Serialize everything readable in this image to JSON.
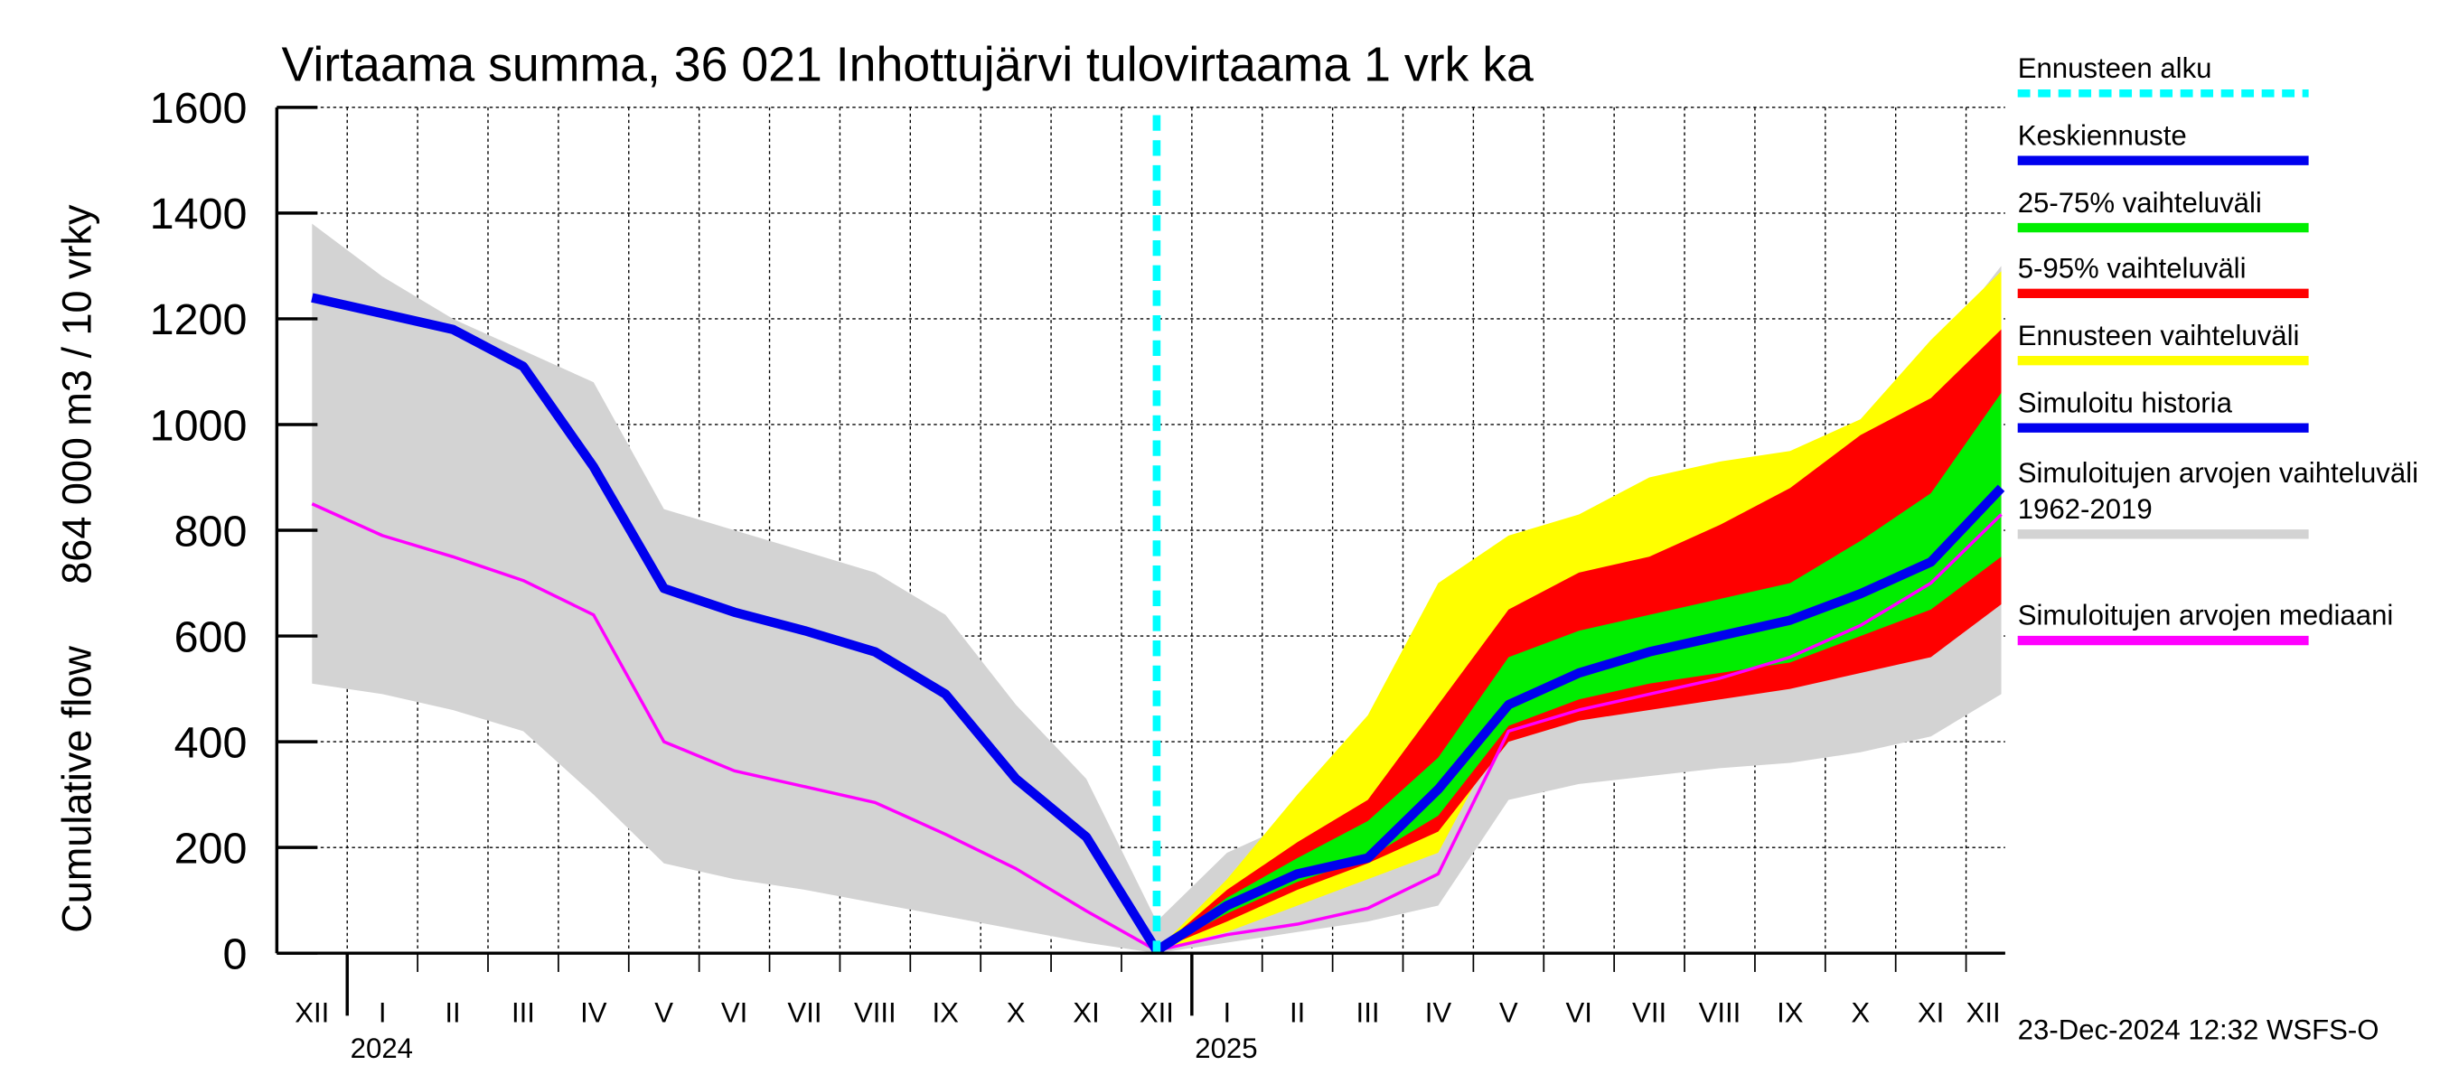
{
  "chart_data": {
    "type": "band",
    "title": "Virtaama summa, 36 021 Inhottujärvi tulovirtaama 1 vrk ka",
    "ylabel": "Cumulative flow",
    "ylabel_units": "864 000 m3 / 10 vrky",
    "footer": "23-Dec-2024 12:32 WSFS-O",
    "x": [
      "2023-12",
      "2024-01",
      "2024-02",
      "2024-03",
      "2024-04",
      "2024-05",
      "2024-06",
      "2024-07",
      "2024-08",
      "2024-09",
      "2024-10",
      "2024-11",
      "2024-12",
      "2025-01",
      "2025-02",
      "2025-03",
      "2025-04",
      "2025-05",
      "2025-06",
      "2025-07",
      "2025-08",
      "2025-09",
      "2025-10",
      "2025-11",
      "2025-12"
    ],
    "month_labels": [
      "XII",
      "I",
      "II",
      "III",
      "IV",
      "V",
      "VI",
      "VII",
      "VIII",
      "IX",
      "X",
      "XI",
      "XII",
      "I",
      "II",
      "III",
      "IV",
      "V",
      "VI",
      "VII",
      "VIII",
      "IX",
      "X",
      "XI",
      "XII"
    ],
    "years": [
      "2024",
      "2025"
    ],
    "forecast_start": "2024-12",
    "forecast_start_name": "Ennusteen alku",
    "forecast_start_color": "#00ffff",
    "ylim": [
      0,
      1600
    ],
    "yticks": [
      0,
      200,
      400,
      600,
      800,
      1000,
      1200,
      1400,
      1600
    ],
    "grid": true,
    "series": [
      {
        "name": "Keskiennuste",
        "kind": "line",
        "color": "#0000ee",
        "width": 6,
        "values": [
          null,
          null,
          null,
          null,
          null,
          null,
          null,
          null,
          null,
          null,
          null,
          null,
          5,
          90,
          150,
          180,
          310,
          470,
          530,
          570,
          600,
          630,
          680,
          740,
          880
        ]
      },
      {
        "name": "25-75% vaihteluväli",
        "kind": "band",
        "color": "#00ee00",
        "low": [
          null,
          null,
          null,
          null,
          null,
          null,
          null,
          null,
          null,
          null,
          null,
          null,
          5,
          75,
          135,
          180,
          260,
          430,
          480,
          510,
          530,
          550,
          600,
          650,
          750
        ],
        "high": [
          null,
          null,
          null,
          null,
          null,
          null,
          null,
          null,
          null,
          null,
          null,
          null,
          5,
          105,
          180,
          250,
          370,
          560,
          610,
          640,
          670,
          700,
          780,
          870,
          1060
        ]
      },
      {
        "name": "5-95% vaihteluväli",
        "kind": "band",
        "color": "#ff0000",
        "low": [
          null,
          null,
          null,
          null,
          null,
          null,
          null,
          null,
          null,
          null,
          null,
          null,
          5,
          60,
          120,
          170,
          230,
          400,
          440,
          460,
          480,
          500,
          530,
          560,
          660
        ],
        "high": [
          null,
          null,
          null,
          null,
          null,
          null,
          null,
          null,
          null,
          null,
          null,
          null,
          5,
          120,
          210,
          290,
          470,
          650,
          720,
          750,
          810,
          880,
          980,
          1050,
          1180
        ]
      },
      {
        "name": "Ennusteen vaihteluväli",
        "kind": "band",
        "color": "#ffff00",
        "low": [
          null,
          null,
          null,
          null,
          null,
          null,
          null,
          null,
          null,
          null,
          null,
          null,
          5,
          40,
          90,
          140,
          190,
          440,
          470,
          480,
          490,
          500,
          560,
          620,
          670
        ],
        "high": [
          null,
          null,
          null,
          null,
          null,
          null,
          null,
          null,
          null,
          null,
          null,
          null,
          5,
          140,
          300,
          450,
          700,
          790,
          830,
          900,
          930,
          950,
          1010,
          1160,
          1290
        ]
      },
      {
        "name": "Simuloitu historia",
        "kind": "line",
        "color": "#0000ee",
        "width": 6,
        "values": [
          1240,
          1210,
          1180,
          1110,
          920,
          690,
          645,
          610,
          570,
          490,
          330,
          220,
          5,
          null,
          null,
          null,
          null,
          null,
          null,
          null,
          null,
          null,
          null,
          null,
          null
        ]
      },
      {
        "name": "Simuloitujen arvojen vaihteluväli 1962-2019",
        "kind": "band",
        "color": "#d3d3d3",
        "low": [
          510,
          490,
          460,
          420,
          300,
          170,
          140,
          120,
          95,
          70,
          45,
          20,
          0,
          20,
          40,
          60,
          90,
          290,
          320,
          335,
          350,
          360,
          380,
          410,
          490
        ],
        "high": [
          1380,
          1280,
          1200,
          1140,
          1080,
          840,
          800,
          760,
          720,
          640,
          470,
          330,
          60,
          190,
          250,
          320,
          550,
          680,
          720,
          790,
          870,
          930,
          1010,
          1130,
          1300
        ]
      },
      {
        "name": "Simuloitujen arvojen mediaani",
        "kind": "line",
        "color": "#ff00ff",
        "width": 2,
        "values": [
          850,
          790,
          750,
          705,
          640,
          400,
          345,
          315,
          285,
          225,
          160,
          80,
          5,
          35,
          55,
          85,
          150,
          420,
          460,
          490,
          520,
          560,
          620,
          700,
          830
        ]
      }
    ]
  }
}
